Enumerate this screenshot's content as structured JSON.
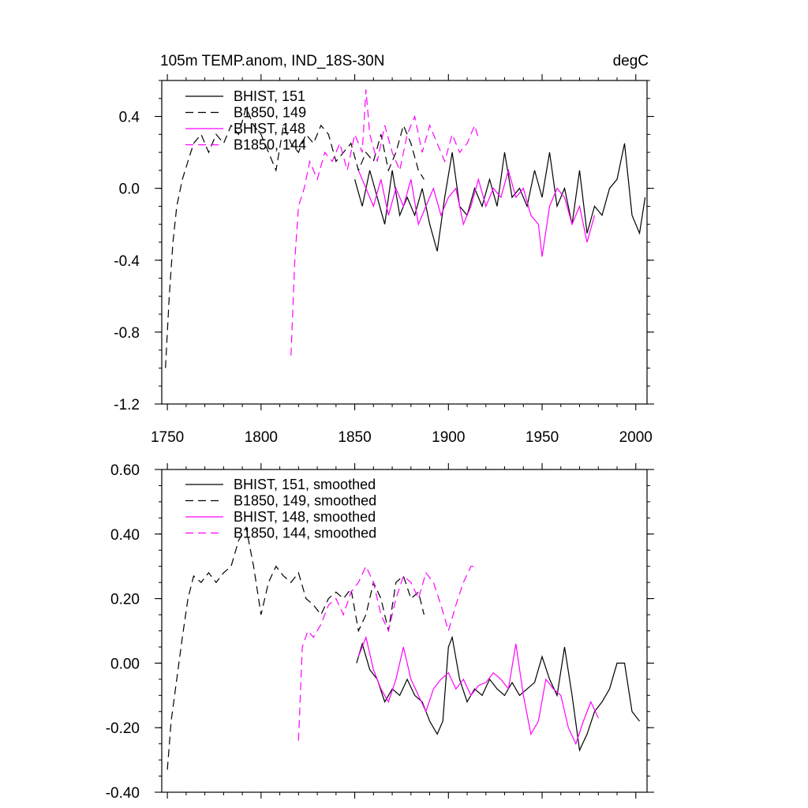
{
  "chart_data": [
    {
      "type": "line",
      "title": "105m TEMP.anom, IND_18S-30N",
      "units": "degC",
      "xlim": [
        1747,
        2006
      ],
      "ylim": [
        -1.2,
        0.6
      ],
      "x_ticks": [
        1750,
        1800,
        1850,
        1900,
        1950,
        2000
      ],
      "x_tick_labels": [
        "1750",
        "1800",
        "1850",
        "1900",
        "1950",
        "2000"
      ],
      "y_ticks": [
        -1.2,
        -0.8,
        -0.4,
        0.0,
        0.4
      ],
      "y_tick_labels": [
        "-1.2",
        "-0.8",
        "-0.4",
        "0.0",
        "0.4"
      ],
      "legend_position": "top-left",
      "series": [
        {
          "name": "BHIST, 151",
          "color": "#000000",
          "dash": "solid",
          "x": [
            1850,
            1854,
            1858,
            1862,
            1866,
            1870,
            1874,
            1878,
            1882,
            1886,
            1890,
            1894,
            1898,
            1902,
            1906,
            1910,
            1914,
            1918,
            1922,
            1926,
            1930,
            1934,
            1938,
            1942,
            1946,
            1950,
            1954,
            1958,
            1962,
            1966,
            1970,
            1974,
            1978,
            1982,
            1986,
            1990,
            1994,
            1998,
            2002,
            2005
          ],
          "y": [
            0.05,
            -0.1,
            0.1,
            -0.05,
            -0.2,
            0.1,
            -0.15,
            -0.05,
            -0.15,
            0.0,
            -0.2,
            -0.35,
            -0.05,
            0.2,
            -0.1,
            -0.15,
            0.0,
            -0.1,
            0.05,
            -0.1,
            0.2,
            -0.05,
            0.0,
            -0.1,
            0.1,
            -0.05,
            0.2,
            -0.1,
            0.0,
            -0.2,
            0.1,
            -0.25,
            -0.1,
            -0.15,
            0.0,
            0.05,
            0.25,
            -0.15,
            -0.25,
            -0.05
          ]
        },
        {
          "name": "B1850, 149",
          "color": "#000000",
          "dash": "dashed",
          "x": [
            1749,
            1751,
            1753,
            1755,
            1758,
            1761,
            1764,
            1768,
            1772,
            1776,
            1780,
            1784,
            1788,
            1792,
            1796,
            1800,
            1804,
            1808,
            1812,
            1816,
            1820,
            1824,
            1828,
            1832,
            1836,
            1840,
            1844,
            1848,
            1852,
            1856,
            1860,
            1864,
            1868,
            1872,
            1876,
            1880,
            1884,
            1887
          ],
          "y": [
            -1.0,
            -0.6,
            -0.3,
            -0.1,
            0.05,
            0.15,
            0.25,
            0.3,
            0.2,
            0.3,
            0.25,
            0.35,
            0.3,
            0.45,
            0.35,
            0.3,
            0.2,
            0.1,
            0.35,
            0.25,
            0.2,
            0.3,
            0.25,
            0.35,
            0.3,
            0.15,
            0.2,
            0.25,
            0.1,
            0.2,
            0.15,
            0.3,
            0.1,
            0.2,
            0.35,
            0.25,
            0.1,
            0.05
          ]
        },
        {
          "name": "BHIST, 148",
          "color": "#ff00ff",
          "dash": "solid",
          "x": [
            1852,
            1856,
            1860,
            1864,
            1868,
            1872,
            1876,
            1880,
            1884,
            1888,
            1892,
            1896,
            1900,
            1904,
            1908,
            1912,
            1916,
            1920,
            1924,
            1928,
            1932,
            1936,
            1940,
            1944,
            1948,
            1950,
            1954,
            1958,
            1962,
            1966,
            1970,
            1974,
            1978
          ],
          "y": [
            0.1,
            0.0,
            -0.1,
            0.05,
            -0.15,
            0.0,
            -0.1,
            0.05,
            -0.2,
            -0.1,
            0.0,
            -0.15,
            -0.05,
            0.0,
            -0.2,
            -0.1,
            0.05,
            -0.1,
            0.0,
            -0.05,
            0.1,
            -0.05,
            0.0,
            -0.15,
            -0.2,
            -0.38,
            -0.1,
            0.0,
            -0.05,
            -0.2,
            -0.1,
            -0.3,
            -0.15
          ]
        },
        {
          "name": "B1850, 144",
          "color": "#ff00ff",
          "dash": "dashed",
          "x": [
            1816,
            1818,
            1820,
            1823,
            1826,
            1830,
            1834,
            1838,
            1842,
            1846,
            1850,
            1854,
            1856,
            1858,
            1862,
            1866,
            1870,
            1874,
            1878,
            1882,
            1886,
            1890,
            1894,
            1898,
            1902,
            1906,
            1910,
            1914,
            1916
          ],
          "y": [
            -0.93,
            -0.4,
            -0.1,
            0.0,
            0.15,
            0.05,
            0.2,
            0.15,
            0.25,
            0.1,
            0.3,
            0.2,
            0.55,
            0.3,
            0.15,
            0.35,
            0.2,
            0.1,
            0.3,
            0.4,
            0.2,
            0.35,
            0.25,
            0.15,
            0.3,
            0.2,
            0.25,
            0.35,
            0.28
          ]
        }
      ]
    },
    {
      "type": "line",
      "xlim": [
        1747,
        2006
      ],
      "ylim": [
        -0.4,
        0.6
      ],
      "x_ticks": [
        1750,
        1800,
        1850,
        1900,
        1950,
        2000
      ],
      "y_ticks": [
        -0.4,
        -0.2,
        0.0,
        0.2,
        0.4,
        0.6
      ],
      "y_tick_labels": [
        "-0.40",
        "-0.20",
        "0.00",
        "0.20",
        "0.40",
        "0.60"
      ],
      "legend_position": "top-left",
      "series": [
        {
          "name": "BHIST, 151, smoothed",
          "color": "#000000",
          "dash": "solid",
          "x": [
            1851,
            1854,
            1858,
            1862,
            1866,
            1870,
            1874,
            1878,
            1882,
            1886,
            1890,
            1894,
            1897,
            1900,
            1902,
            1906,
            1910,
            1914,
            1918,
            1922,
            1926,
            1930,
            1934,
            1938,
            1942,
            1946,
            1950,
            1954,
            1958,
            1962,
            1966,
            1970,
            1974,
            1978,
            1982,
            1986,
            1990,
            1994,
            1998,
            2002
          ],
          "y": [
            0.0,
            0.06,
            -0.02,
            -0.05,
            -0.12,
            -0.08,
            -0.1,
            -0.05,
            -0.1,
            -0.12,
            -0.18,
            -0.22,
            -0.18,
            0.05,
            0.08,
            -0.05,
            -0.12,
            -0.08,
            -0.1,
            -0.05,
            -0.08,
            -0.1,
            -0.06,
            -0.1,
            -0.08,
            -0.06,
            0.02,
            -0.05,
            -0.1,
            0.05,
            -0.1,
            -0.27,
            -0.22,
            -0.15,
            -0.12,
            -0.08,
            0.0,
            0.0,
            -0.15,
            -0.18
          ]
        },
        {
          "name": "B1850, 149, smoothed",
          "color": "#000000",
          "dash": "dashed",
          "x": [
            1750,
            1752,
            1755,
            1758,
            1761,
            1764,
            1768,
            1772,
            1776,
            1780,
            1784,
            1788,
            1792,
            1796,
            1800,
            1804,
            1808,
            1812,
            1816,
            1820,
            1824,
            1828,
            1832,
            1836,
            1840,
            1844,
            1848,
            1852,
            1856,
            1860,
            1864,
            1868,
            1872,
            1876,
            1880,
            1884,
            1887
          ],
          "y": [
            -0.33,
            -0.18,
            -0.05,
            0.08,
            0.2,
            0.27,
            0.25,
            0.28,
            0.25,
            0.28,
            0.3,
            0.38,
            0.42,
            0.3,
            0.15,
            0.25,
            0.3,
            0.27,
            0.25,
            0.28,
            0.2,
            0.18,
            0.15,
            0.2,
            0.22,
            0.2,
            0.23,
            0.1,
            0.15,
            0.25,
            0.2,
            0.1,
            0.25,
            0.27,
            0.2,
            0.22,
            0.15
          ]
        },
        {
          "name": "BHIST, 148, smoothed",
          "color": "#ff00ff",
          "dash": "solid",
          "x": [
            1852,
            1856,
            1860,
            1864,
            1868,
            1872,
            1876,
            1880,
            1884,
            1888,
            1892,
            1896,
            1900,
            1904,
            1908,
            1912,
            1916,
            1920,
            1924,
            1928,
            1932,
            1936,
            1940,
            1944,
            1948,
            1952,
            1956,
            1960,
            1964,
            1968,
            1972,
            1976,
            1980
          ],
          "y": [
            0.02,
            0.08,
            -0.02,
            -0.08,
            -0.12,
            -0.05,
            0.05,
            -0.05,
            -0.1,
            -0.15,
            -0.08,
            -0.05,
            -0.03,
            -0.08,
            -0.05,
            -0.1,
            -0.07,
            -0.06,
            -0.03,
            -0.05,
            -0.08,
            0.06,
            -0.1,
            -0.22,
            -0.18,
            -0.05,
            -0.08,
            -0.1,
            -0.2,
            -0.25,
            -0.18,
            -0.12,
            -0.17
          ]
        },
        {
          "name": "B1850, 144, smoothed",
          "color": "#ff00ff",
          "dash": "dashed",
          "x": [
            1820,
            1822,
            1825,
            1828,
            1832,
            1836,
            1840,
            1844,
            1848,
            1852,
            1856,
            1860,
            1864,
            1868,
            1872,
            1876,
            1880,
            1884,
            1888,
            1892,
            1896,
            1900,
            1904,
            1908,
            1912,
            1915
          ],
          "y": [
            -0.24,
            0.05,
            0.1,
            0.08,
            0.12,
            0.18,
            0.2,
            0.15,
            0.22,
            0.25,
            0.3,
            0.25,
            0.15,
            0.1,
            0.2,
            0.27,
            0.25,
            0.2,
            0.28,
            0.25,
            0.18,
            0.1,
            0.18,
            0.25,
            0.3,
            0.3
          ]
        }
      ]
    }
  ]
}
